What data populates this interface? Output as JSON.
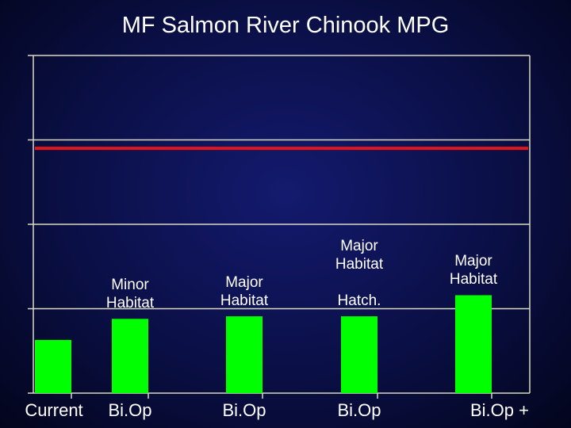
{
  "chart_data": {
    "type": "bar",
    "title": "MF Salmon River Chinook MPG",
    "xlabel": "",
    "ylabel": "",
    "ylim": [
      0,
      4
    ],
    "grid": true,
    "categories": [
      "Current",
      "Bi.Op",
      "Bi.Op",
      "Bi.Op",
      "Bi.Op +"
    ],
    "values": [
      0.63,
      0.88,
      0.91,
      0.91,
      1.16
    ],
    "bar_labels": [
      "",
      "Minor\nHabitat",
      "Major\nHabitat",
      "Major\nHabitat\n\nHatch.",
      "Major\nHabitat"
    ],
    "reference_line": {
      "value": 2.9
    },
    "colors": {
      "bar": "#00ff00",
      "reference_line": "#e3141b",
      "axis": "#d9d9c0"
    }
  }
}
